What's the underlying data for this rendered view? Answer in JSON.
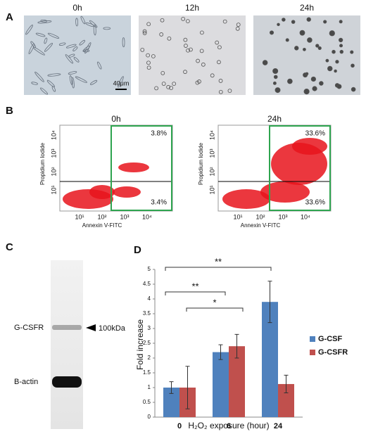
{
  "panel_labels": [
    "A",
    "B",
    "C",
    "D"
  ],
  "panel_a": {
    "images": [
      {
        "label": "0h"
      },
      {
        "label": "12h"
      },
      {
        "label": "24h"
      }
    ],
    "scale_bar": "40μm"
  },
  "panel_b": {
    "plots": [
      {
        "title": "0h",
        "upper_right": "3.8%",
        "lower_right": "3.4%"
      },
      {
        "title": "24h",
        "upper_right": "33.6%",
        "lower_right": "33.6%"
      }
    ],
    "y_label": "Propidium Iodide",
    "x_label": "Annexin V-FITC",
    "ticks": [
      "10¹",
      "10²",
      "10³",
      "10⁴"
    ]
  },
  "panel_c": {
    "bands": [
      "G-CSFR",
      "B-actin"
    ],
    "marker": "100kDa"
  },
  "chart_data": {
    "type": "bar",
    "categories": [
      "0",
      "6",
      "24"
    ],
    "series": [
      {
        "name": "G-CSF",
        "color": "#4f81bd",
        "values": [
          1,
          2.2,
          3.9
        ],
        "errors": [
          0.2,
          0.25,
          0.7
        ]
      },
      {
        "name": "G-CSFR",
        "color": "#c0504d",
        "values": [
          1,
          2.4,
          1.12
        ],
        "errors": [
          0.72,
          0.4,
          0.3
        ]
      }
    ],
    "ylim": [
      0,
      5
    ],
    "yticks": [
      0,
      0.5,
      1,
      1.5,
      2,
      2.5,
      3,
      3.5,
      4,
      4.5,
      5
    ],
    "y_label": "Fold increase",
    "x_label": "H₂O₂ exposure (hour)",
    "annotations": [
      "**",
      "*",
      "**"
    ],
    "legend": "right"
  }
}
